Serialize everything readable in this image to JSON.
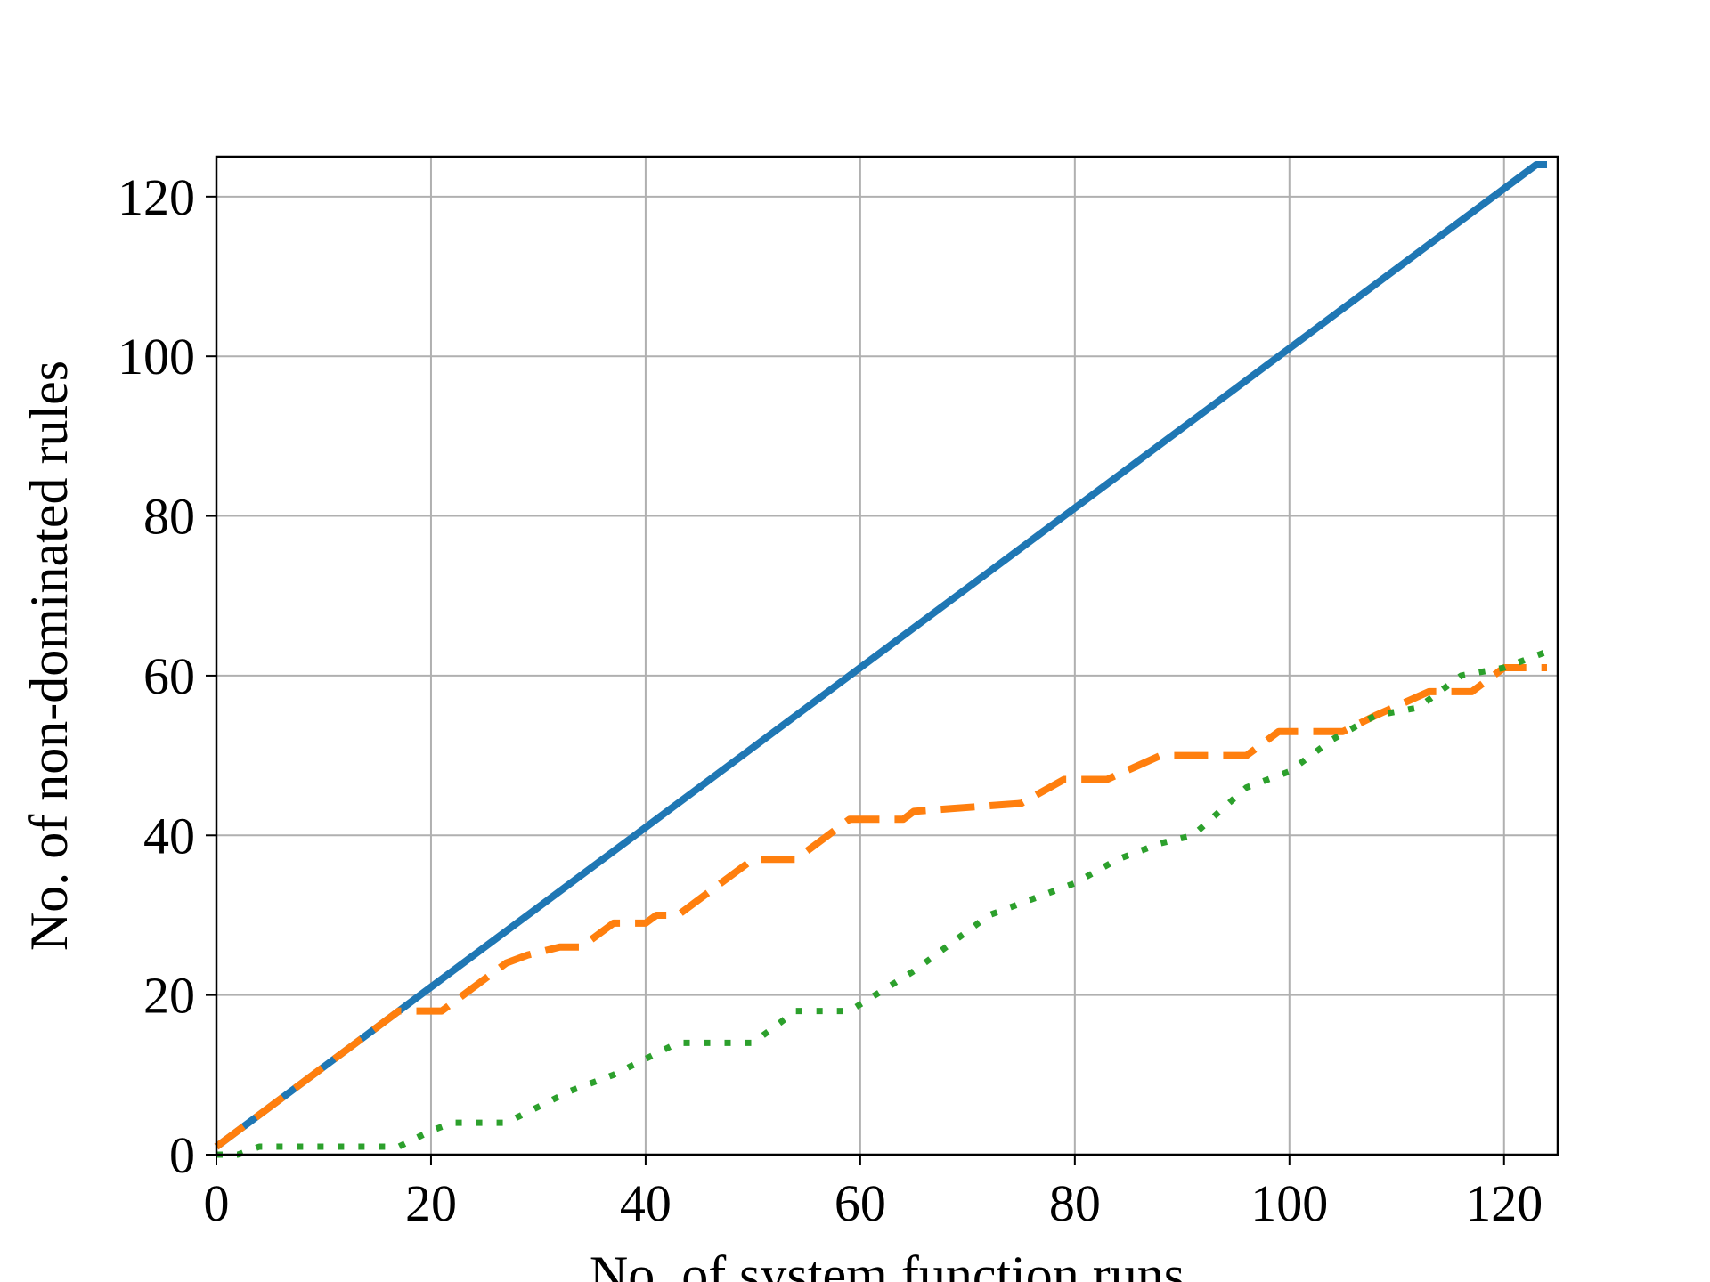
{
  "chart_data": {
    "type": "line",
    "title": "",
    "xlabel": "No. of system function runs",
    "ylabel": "No. of non-dominated rules",
    "xlim": [
      0,
      125
    ],
    "ylim": [
      0,
      125
    ],
    "xticks": [
      0,
      20,
      40,
      60,
      80,
      100,
      120
    ],
    "yticks": [
      0,
      20,
      40,
      60,
      80,
      100,
      120
    ],
    "xtick_labels": [
      "0",
      "20",
      "40",
      "60",
      "80",
      "100",
      "120"
    ],
    "ytick_labels": [
      "0",
      "20",
      "40",
      "60",
      "80",
      "100",
      "120"
    ],
    "grid": true,
    "legend": "none",
    "series": [
      {
        "color": "#1f77b4",
        "style": "solid",
        "x": [
          0,
          2,
          123,
          124
        ],
        "y": [
          1,
          3,
          124,
          124
        ]
      },
      {
        "color": "#ff7f0e",
        "style": "dashed",
        "x": [
          0,
          17,
          18,
          21,
          27,
          29,
          32,
          34,
          37,
          40,
          41,
          43,
          50,
          54,
          59,
          60,
          64,
          65,
          75,
          79,
          83,
          88,
          96,
          99,
          105,
          108,
          113,
          117,
          120,
          124
        ],
        "y": [
          1,
          18,
          18,
          18,
          24,
          25,
          26,
          26,
          29,
          29,
          30,
          30,
          37,
          37,
          42,
          42,
          42,
          43,
          44,
          47,
          47,
          50,
          50,
          53,
          53,
          55,
          58,
          58,
          61,
          61
        ],
        "end_x": 124
      },
      {
        "color": "#2ca02c",
        "style": "dotted",
        "x": [
          0,
          2,
          4,
          17,
          20,
          22,
          27,
          33,
          37,
          43,
          50,
          54,
          59,
          65,
          72,
          80,
          84,
          88,
          91,
          96,
          100,
          104,
          108,
          112,
          116,
          120,
          124
        ],
        "y": [
          0,
          0,
          1,
          1,
          3,
          4,
          4,
          8,
          10,
          14,
          14,
          18,
          18,
          23,
          30,
          34,
          37,
          39,
          40,
          46,
          48,
          52,
          55,
          56,
          60,
          61,
          63
        ]
      }
    ]
  }
}
